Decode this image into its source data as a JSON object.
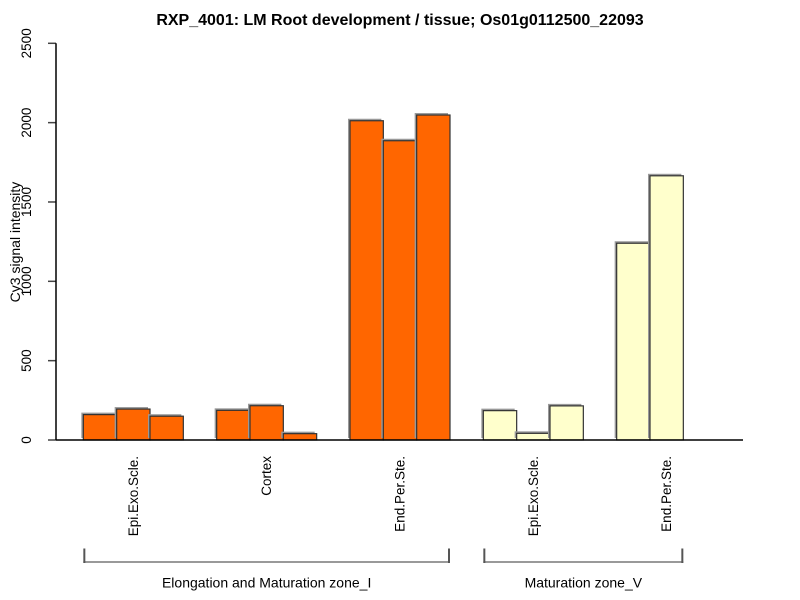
{
  "title": "RXP_4001: LM Root development / tissue; Os01g0112500_22093",
  "chart_data": {
    "type": "bar",
    "title": "RXP_4001: LM Root development / tissue; Os01g0112500_22093",
    "xlabel": "",
    "ylabel": "Cy3 signal intensity",
    "ylim": [
      0,
      2500
    ],
    "y_ticks": [
      0,
      500,
      1000,
      1500,
      2000,
      2500
    ],
    "grid": false,
    "legend": "none",
    "groups": [
      {
        "label": "Epi.Exo.Scle.",
        "section": "Elongation and Maturation zone_I",
        "color": "#FF6600",
        "values": [
          160,
          195,
          150
        ]
      },
      {
        "label": "Cortex",
        "section": "Elongation and Maturation zone_I",
        "color": "#FF6600",
        "values": [
          187,
          216,
          40
        ]
      },
      {
        "label": "End.Per.Ste.",
        "section": "Elongation and Maturation zone_I",
        "color": "#FF6600",
        "values": [
          2012,
          1886,
          2048
        ]
      },
      {
        "label": "Epi.Exo.Scle.",
        "section": "Maturation zone_V",
        "color": "#FFFFCC",
        "values": [
          185,
          42,
          215
        ]
      },
      {
        "label": "End.Per.Ste.",
        "section": "Maturation zone_V",
        "color": "#FFFFCC",
        "values": [
          1240,
          1665
        ]
      }
    ],
    "sections": [
      {
        "label": "Elongation and Maturation zone_I",
        "group_indices": [
          0,
          1,
          2
        ]
      },
      {
        "label": "Maturation zone_V",
        "group_indices": [
          3,
          4
        ]
      }
    ]
  },
  "colors": {
    "bar_zone_I": "#FF6600",
    "bar_zone_V": "#FFFFCC",
    "bar_border": "#333333",
    "bar_shadow": "#999999",
    "axis": "#000000",
    "tick": "#444444",
    "bracket_line": "#999999",
    "bracket_tick": "#555555",
    "text": "#000000",
    "background": "#FFFFFF"
  }
}
